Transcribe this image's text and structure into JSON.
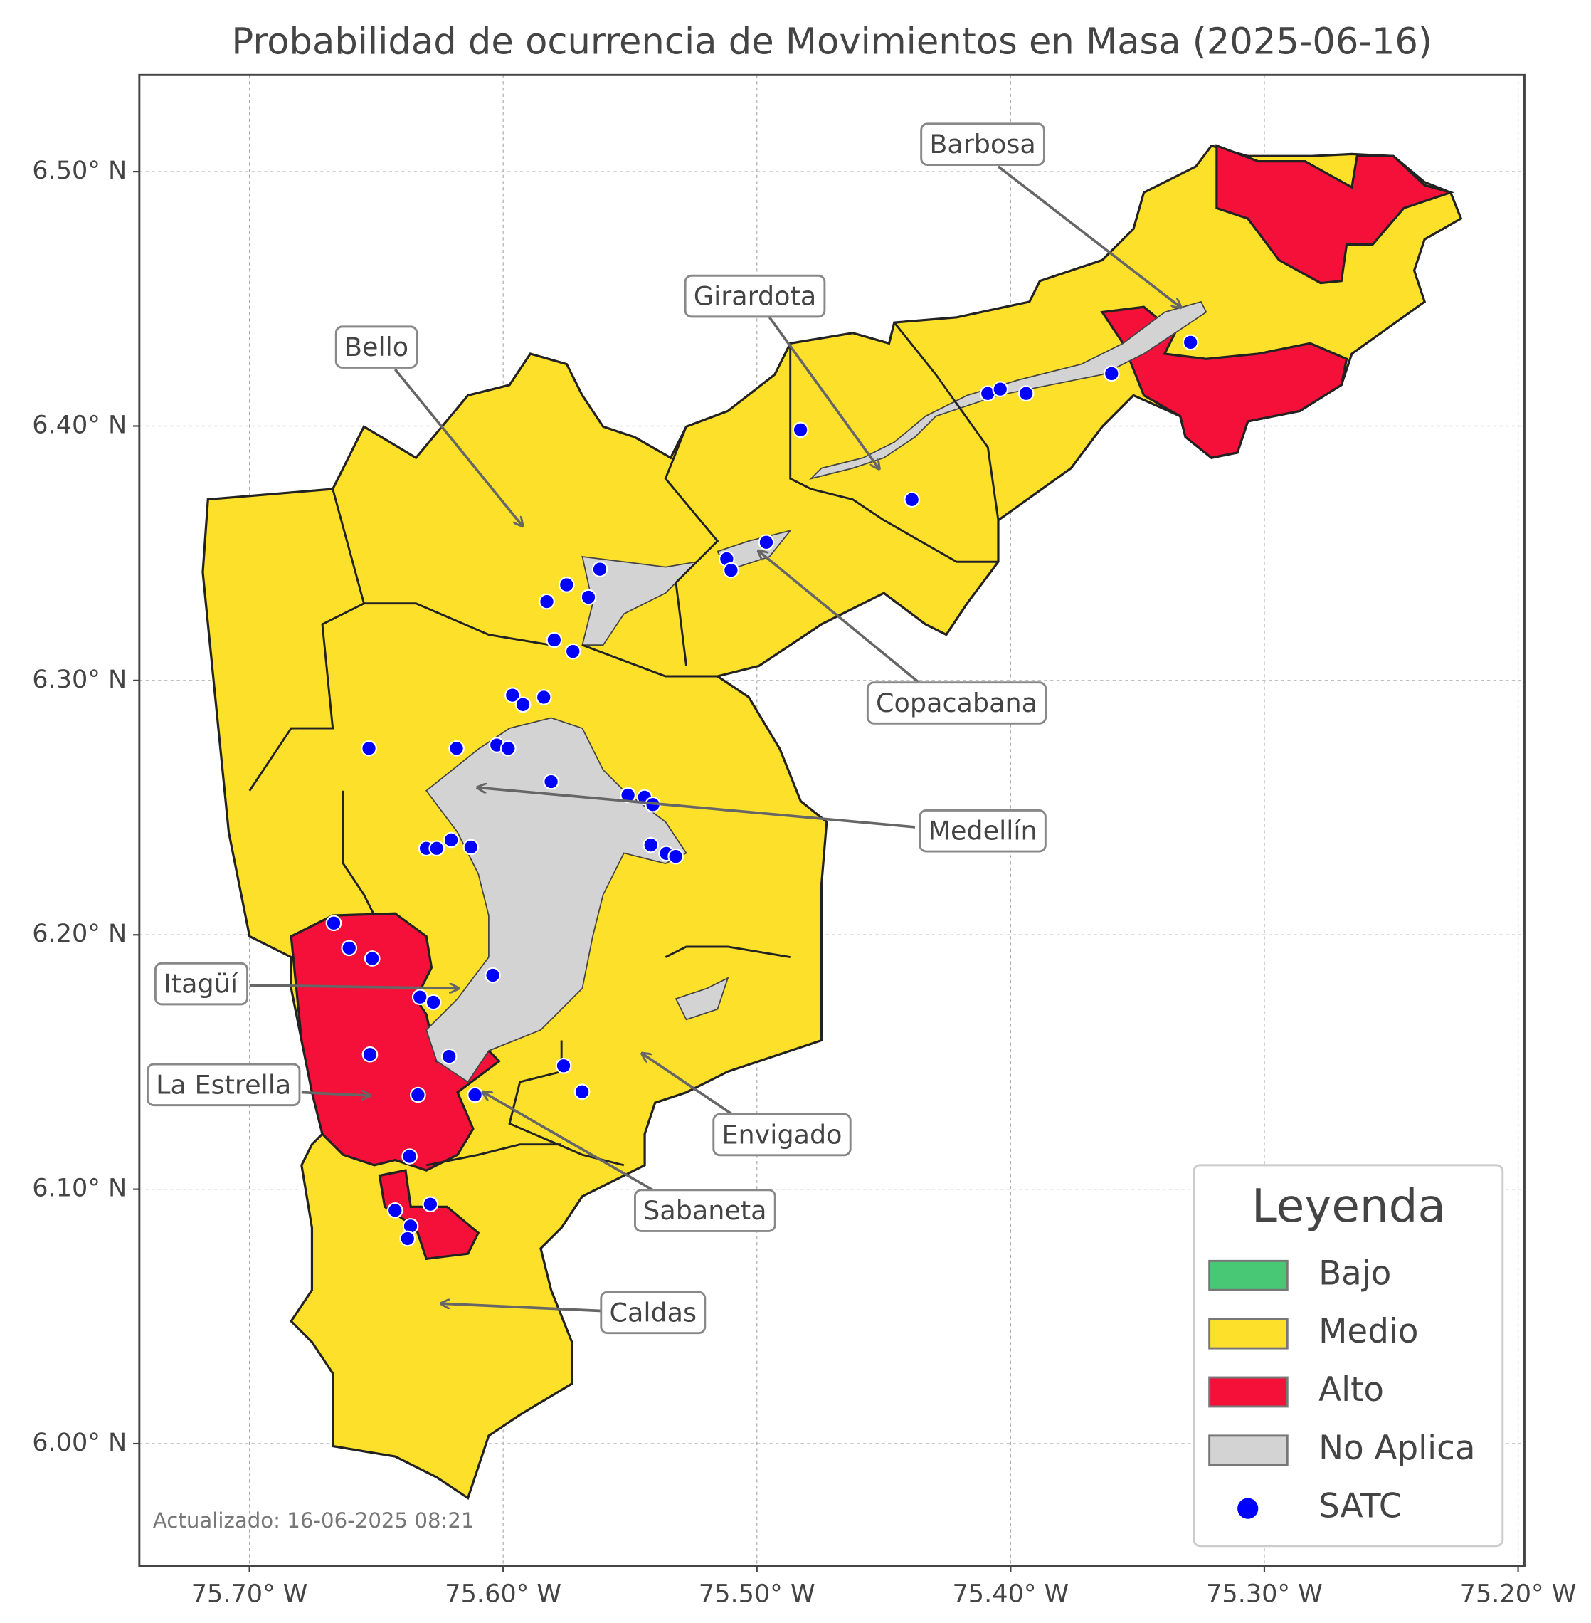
{
  "map": {
    "title": "Probabilidad de ocurrencia de Movimientos en Masa (2025-06-16)",
    "xlim": [
      -75.7434,
      -75.1975
    ],
    "ylim": [
      5.952,
      6.538
    ],
    "xticks": [
      {
        "value": -75.7,
        "label": "75.70° W"
      },
      {
        "value": -75.6,
        "label": "75.60° W"
      },
      {
        "value": -75.5,
        "label": "75.50° W"
      },
      {
        "value": -75.4,
        "label": "75.40° W"
      },
      {
        "value": -75.3,
        "label": "75.30° W"
      },
      {
        "value": -75.2,
        "label": "75.20° W"
      }
    ],
    "yticks": [
      {
        "value": 6.0,
        "label": "6.00° N"
      },
      {
        "value": 6.1,
        "label": "6.10° N"
      },
      {
        "value": 6.2,
        "label": "6.20° N"
      },
      {
        "value": 6.3,
        "label": "6.30° N"
      },
      {
        "value": 6.4,
        "label": "6.40° N"
      },
      {
        "value": 6.5,
        "label": "6.50° N"
      }
    ],
    "grid": true,
    "annotations": [
      "Barbosa",
      "Girardota",
      "Bello",
      "Copacabana",
      "Medellín",
      "Itagüí",
      "La Estrella",
      "Envigado",
      "Sabaneta",
      "Caldas"
    ],
    "legend": {
      "title": "Leyenda",
      "items": [
        {
          "label": "Bajo",
          "color": "#48c774"
        },
        {
          "label": "Medio",
          "color": "#fde02a"
        },
        {
          "label": "Alto",
          "color": "#f5103a"
        },
        {
          "label": "No Aplica",
          "color": "#d3d3d3"
        },
        {
          "label": "SATC",
          "color": "#0000ff"
        }
      ]
    },
    "points": {
      "name": "SATC",
      "lon": [
        -75.4828,
        -75.409,
        -75.4041,
        -75.3939,
        -75.3602,
        -75.3291,
        -75.4389,
        -75.4963,
        -75.5119,
        -75.5102,
        -75.5619,
        -75.575,
        -75.5664,
        -75.5828,
        -75.5799,
        -75.5725,
        -75.5963,
        -75.5922,
        -75.584,
        -75.6529,
        -75.6184,
        -75.6025,
        -75.598,
        -75.5811,
        -75.5508,
        -75.5443,
        -75.541,
        -75.5418,
        -75.5357,
        -75.532,
        -75.6303,
        -75.6262,
        -75.6205,
        -75.6127,
        -75.6668,
        -75.6607,
        -75.6516,
        -75.6041,
        -75.6328,
        -75.6275,
        -75.6213,
        -75.6525,
        -75.5762,
        -75.5689,
        -75.6336,
        -75.6111,
        -75.6369,
        -75.6426,
        -75.6287,
        -75.6365,
        -75.6377
      ],
      "lat": [
        6.3985,
        6.4128,
        6.4145,
        6.4128,
        6.4206,
        6.4329,
        6.3711,
        6.3543,
        6.3478,
        6.3433,
        6.3437,
        6.3376,
        6.3327,
        6.331,
        6.3159,
        6.3114,
        6.2942,
        6.2905,
        6.2934,
        6.2733,
        6.2733,
        6.2746,
        6.2733,
        6.2602,
        6.2549,
        6.2541,
        6.2512,
        6.2353,
        6.232,
        6.2308,
        6.234,
        6.234,
        6.2373,
        6.2345,
        6.2046,
        6.1948,
        6.1907,
        6.1841,
        6.1755,
        6.1735,
        6.1522,
        6.153,
        6.1485,
        6.1383,
        6.1371,
        6.1371,
        6.1129,
        6.0917,
        6.0941,
        6.0855,
        6.0806
      ]
    },
    "footer": "Actualizado: 16-06-2025 08:21"
  }
}
